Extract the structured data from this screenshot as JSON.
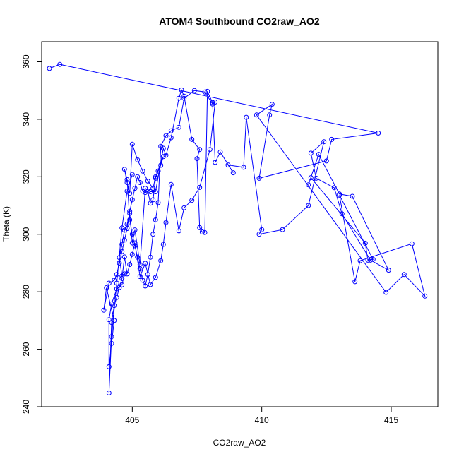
{
  "chart_data": {
    "type": "line",
    "title": "ATOM4 Southbound CO2raw_AO2",
    "xlabel": "CO2raw_AO2",
    "ylabel": "Theta (K)",
    "xlim": [
      401.5,
      416.8
    ],
    "ylim": [
      240,
      367
    ],
    "xticks": [
      "405",
      "410",
      "415"
    ],
    "yticks": [
      "240",
      "260",
      "280",
      "300",
      "320",
      "340",
      "360"
    ],
    "grid": false,
    "legend": "none",
    "series_color": "#0000ff",
    "marker": "open-circle",
    "x": [
      401.8,
      402.2,
      414.5,
      412.7,
      412.5,
      409.9,
      410.3,
      410.4,
      409.8,
      414.8,
      415.5,
      416.3,
      415.8,
      413.8,
      413.6,
      413.0,
      414.3,
      414.1,
      414.0,
      411.9,
      411.8,
      412.2,
      413.0,
      413.5,
      414.9,
      414.2,
      413.1,
      412.8,
      412.1,
      411.9,
      412.4,
      411.8,
      410.8,
      409.9,
      410.0,
      409.4,
      409.3,
      408.7,
      408.9,
      408.4,
      408.2,
      408.1,
      407.9,
      407.8,
      407.7,
      407.6,
      407.5,
      407.6,
      407.3,
      407.0,
      406.9,
      406.8,
      406.5,
      406.3,
      406.2,
      405.9,
      405.7,
      405.5,
      405.3,
      405.1,
      405.0,
      404.9,
      404.8,
      404.7,
      404.6,
      404.5,
      404.6,
      404.7,
      404.6,
      404.4,
      404.2,
      404.1,
      404.1,
      404.2,
      404.3,
      404.0,
      403.9,
      404.1,
      404.3,
      404.4,
      404.5,
      404.6,
      404.7,
      404.8,
      404.9,
      405.0,
      405.1,
      405.2,
      405.3,
      405.4,
      405.5,
      405.6,
      405.7,
      405.8,
      405.9,
      406.0,
      406.1,
      406.2,
      405.9,
      405.8,
      405.6,
      405.4,
      405.2,
      405.0,
      404.9,
      404.8,
      404.7,
      404.8,
      404.9,
      405.0,
      405.1,
      405.2,
      405.3,
      405.4,
      405.5,
      405.6,
      405.7,
      405.8,
      405.9,
      406.0,
      406.1,
      406.3,
      406.5,
      406.8,
      407.0,
      407.4,
      407.8,
      408.1,
      408.2,
      408.0,
      407.6,
      407.3,
      407.0,
      406.8,
      406.5,
      406.3,
      406.2,
      406.1,
      405.9,
      405.7,
      405.5,
      405.3,
      405.1,
      405.0,
      404.9,
      404.8,
      404.7,
      404.6,
      404.5,
      404.4,
      404.3,
      404.2,
      404.1,
      404.2,
      404.4,
      404.6,
      404.8,
      405.0
    ],
    "y": [
      357.7,
      359.1,
      335.2,
      333.0,
      325.5,
      319.5,
      341.5,
      345.2,
      341.5,
      279.8,
      286.0,
      278.5,
      296.7,
      290.8,
      283.5,
      313.6,
      291.3,
      291.0,
      296.9,
      319.7,
      317.2,
      327.8,
      314.0,
      313.2,
      287.5,
      291.0,
      307.1,
      316.2,
      319.5,
      328.2,
      332.2,
      310.0,
      301.6,
      300.0,
      301.6,
      340.7,
      323.3,
      324.1,
      321.4,
      328.6,
      325.0,
      345.8,
      349.7,
      300.6,
      300.8,
      302.3,
      326.3,
      329.5,
      333.0,
      348.0,
      350.2,
      347.3,
      333.6,
      327.5,
      329.9,
      314.8,
      314.8,
      316.0,
      289.5,
      301.5,
      297.0,
      307.3,
      303.5,
      301.4,
      296.5,
      291.9,
      285.5,
      286.2,
      282.4,
      281.0,
      275.8,
      270.3,
      253.9,
      262.0,
      270.0,
      281.4,
      273.6,
      283.0,
      284.0,
      286.0,
      290.0,
      294.0,
      298.0,
      302.0,
      308.0,
      312.0,
      316.0,
      320.0,
      318.0,
      315.0,
      314.5,
      315.0,
      310.8,
      312.0,
      319.5,
      322.0,
      324.0,
      327.0,
      320.0,
      316.0,
      318.5,
      322.0,
      325.9,
      331.3,
      314.2,
      318.0,
      322.6,
      319.0,
      305.0,
      300.0,
      296.0,
      292.0,
      288.0,
      284.0,
      282.0,
      286.0,
      292.0,
      300.0,
      305.0,
      311.0,
      330.6,
      334.3,
      336.0,
      337.2,
      347.3,
      350.0,
      349.5,
      345.3,
      346.0,
      329.5,
      316.3,
      311.8,
      309.2,
      301.2,
      317.3,
      304.1,
      296.5,
      290.8,
      285.0,
      282.5,
      289.9,
      285.3,
      297.0,
      293.0,
      289.5,
      286.2,
      292.1,
      284.6,
      281.5,
      278.0,
      275.2,
      269.3,
      244.8,
      264.4,
      283.0,
      302.2,
      315.0,
      320.8
    ]
  }
}
